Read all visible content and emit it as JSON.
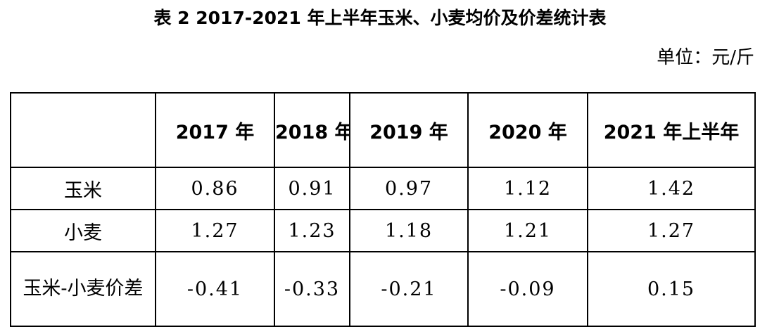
{
  "title": "表 2 2017-2021 年上半年玉米、小麦均价及价差统计表",
  "unit": "单位：元/斤",
  "table": {
    "columns": [
      "",
      "2017 年",
      "2018 年",
      "2019 年",
      "2020 年",
      "2021 年上半年"
    ],
    "rows": [
      {
        "label": "玉米",
        "values": [
          "0.86",
          "0.91",
          "0.97",
          "1.12",
          "1.42"
        ]
      },
      {
        "label": "小麦",
        "values": [
          "1.27",
          "1.23",
          "1.18",
          "1.21",
          "1.27"
        ]
      },
      {
        "label": "玉米-小麦价差",
        "values": [
          "-0.41",
          "-0.33",
          "-0.21",
          "-0.09",
          "0.15"
        ]
      }
    ]
  }
}
